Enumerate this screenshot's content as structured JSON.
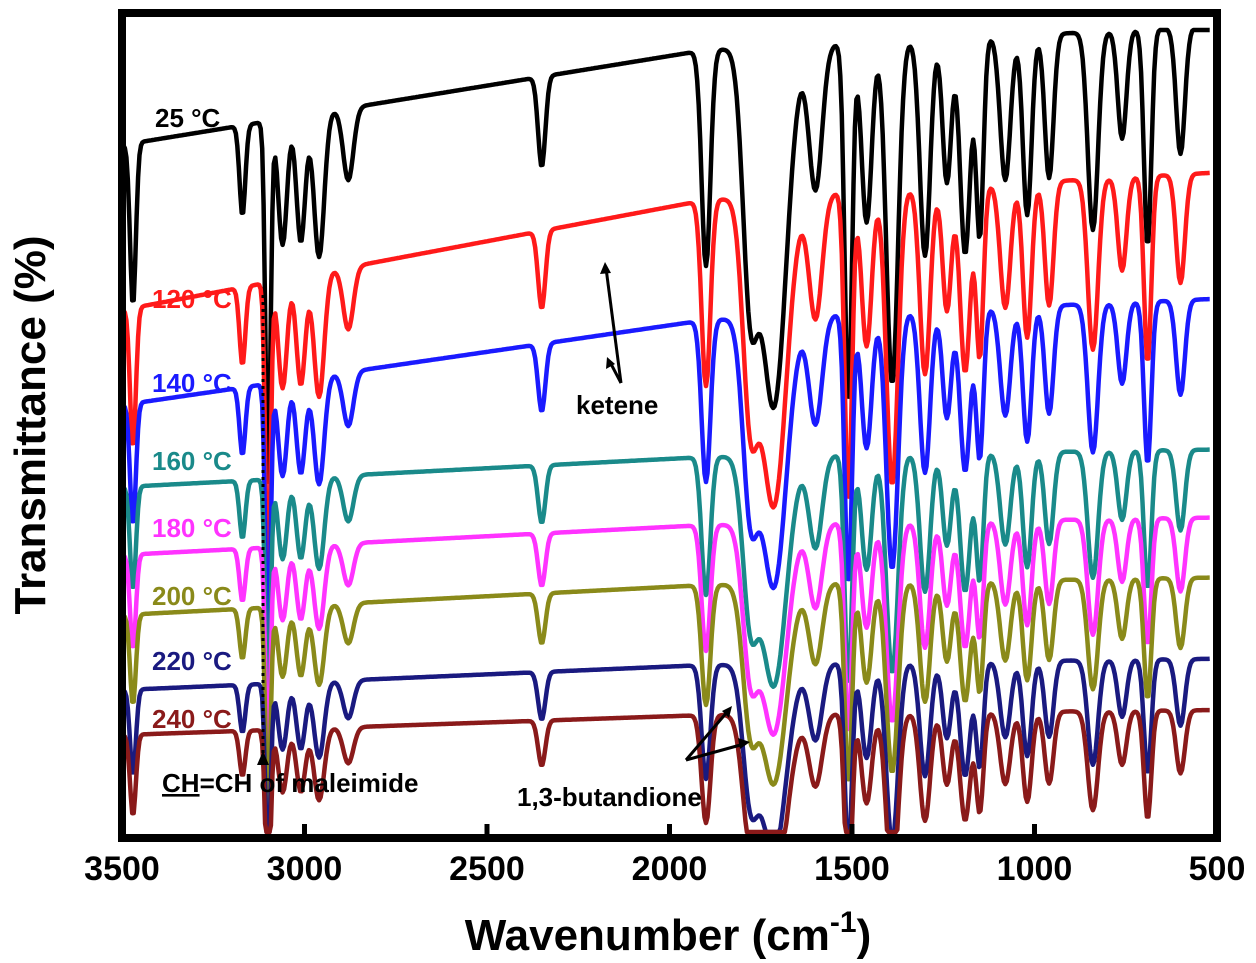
{
  "chart_data": {
    "type": "line",
    "title": "",
    "xlabel": "Wavenumber (cm",
    "xlabel_sup": "-1",
    "xlabel_close": ")",
    "ylabel": "Transmittance (%)",
    "xlim": [
      3500,
      500
    ],
    "x_reversed": true,
    "x_ticks": [
      3500,
      3000,
      2500,
      2000,
      1500,
      1000,
      500
    ],
    "x_tick_labels": [
      "3500",
      "3000",
      "2500",
      "2000",
      "1500",
      "1000",
      "500"
    ],
    "y_ticks_shown": false,
    "series": [
      {
        "name": "25 °C",
        "color": "#000000"
      },
      {
        "name": "120 °C",
        "color": "#ff1a1a"
      },
      {
        "name": "140 °C",
        "color": "#1a1aff"
      },
      {
        "name": "160 °C",
        "color": "#1a8a8a"
      },
      {
        "name": "180 °C",
        "color": "#ff33ff"
      },
      {
        "name": "200 °C",
        "color": "#8a8a1a"
      },
      {
        "name": "220 °C",
        "color": "#1a1a80"
      },
      {
        "name": "240 °C",
        "color": "#8a1a1a"
      }
    ],
    "annotations": {
      "ketene": "ketene",
      "maleimide_ch": "CH",
      "maleimide_rest": "=CH of maleimide",
      "butandione": "1,3-butandione"
    }
  }
}
